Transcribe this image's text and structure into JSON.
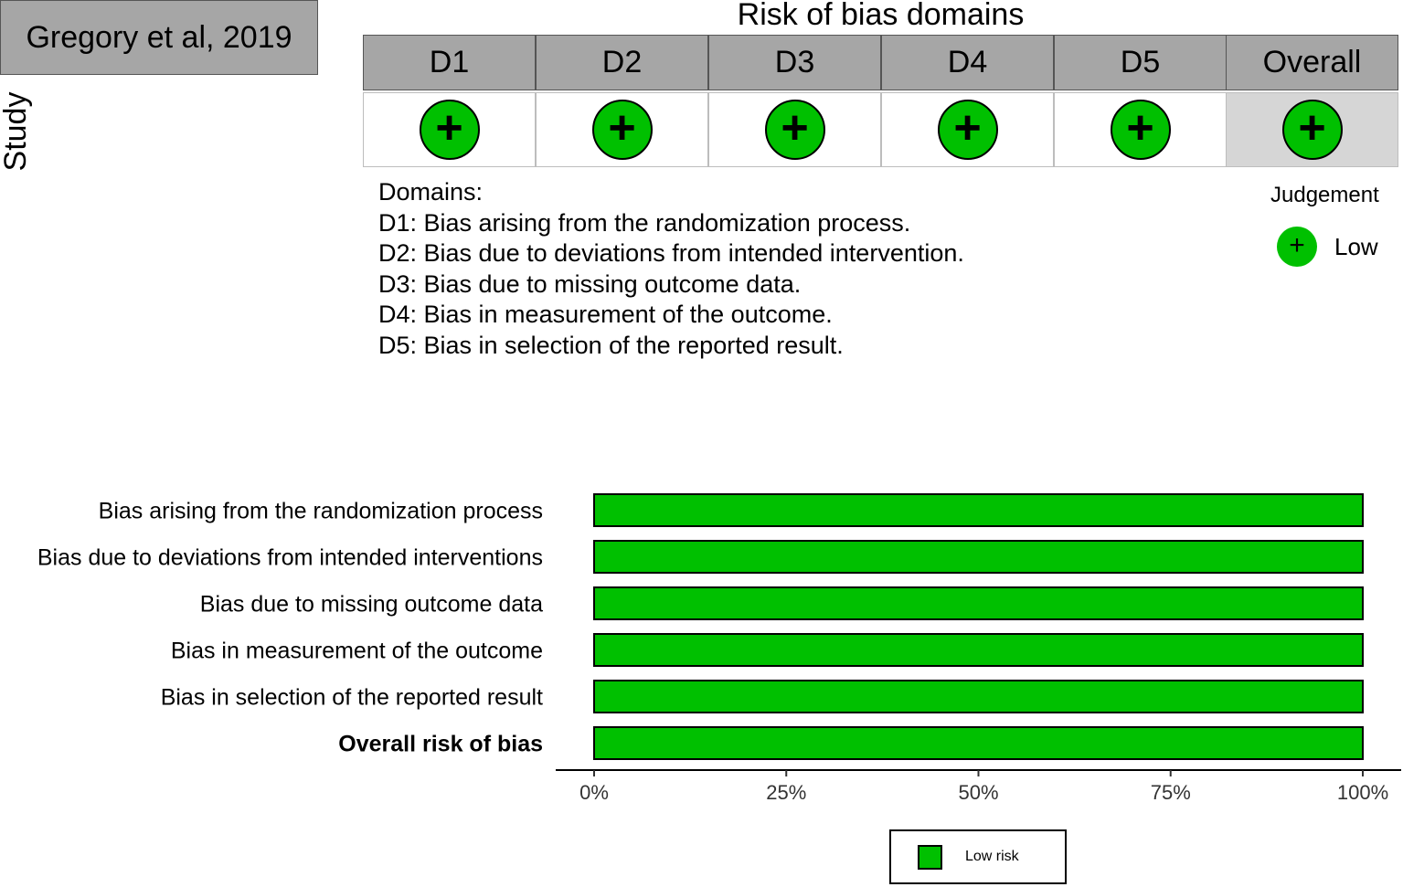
{
  "traffic_light": {
    "title": "Risk of bias domains",
    "study_axis_label": "Study",
    "columns": [
      "D1",
      "D2",
      "D3",
      "D4",
      "D5",
      "Overall"
    ],
    "study": {
      "name": "Gregory et al, 2019",
      "judgements": [
        "+",
        "+",
        "+",
        "+",
        "+",
        "+"
      ]
    },
    "domains_heading": "Domains:",
    "domain_descriptions": [
      "D1: Bias arising from the randomization process.",
      "D2: Bias due to deviations from intended intervention.",
      "D3: Bias due to missing outcome data.",
      "D4: Bias in measurement of the outcome.",
      "D5: Bias in selection of the reported result."
    ],
    "judgement_legend": {
      "title": "Judgement",
      "symbol": "+",
      "label": "Low",
      "color": "#00c000"
    }
  },
  "chart_data": {
    "type": "bar",
    "orientation": "horizontal",
    "stacked": true,
    "categories": [
      "Bias arising from the randomization process",
      "Bias due to deviations from intended interventions",
      "Bias due to missing outcome data",
      "Bias in measurement of the outcome",
      "Bias in selection of the reported result",
      "Overall risk of bias"
    ],
    "bold_categories": [
      "Overall risk of bias"
    ],
    "series": [
      {
        "name": "Low risk",
        "color": "#00c000",
        "values": [
          100,
          100,
          100,
          100,
          100,
          100
        ]
      }
    ],
    "xlim": [
      0,
      100
    ],
    "xticks": [
      "0%",
      "25%",
      "50%",
      "75%",
      "100%"
    ],
    "grid": false,
    "legend_position": "bottom"
  }
}
